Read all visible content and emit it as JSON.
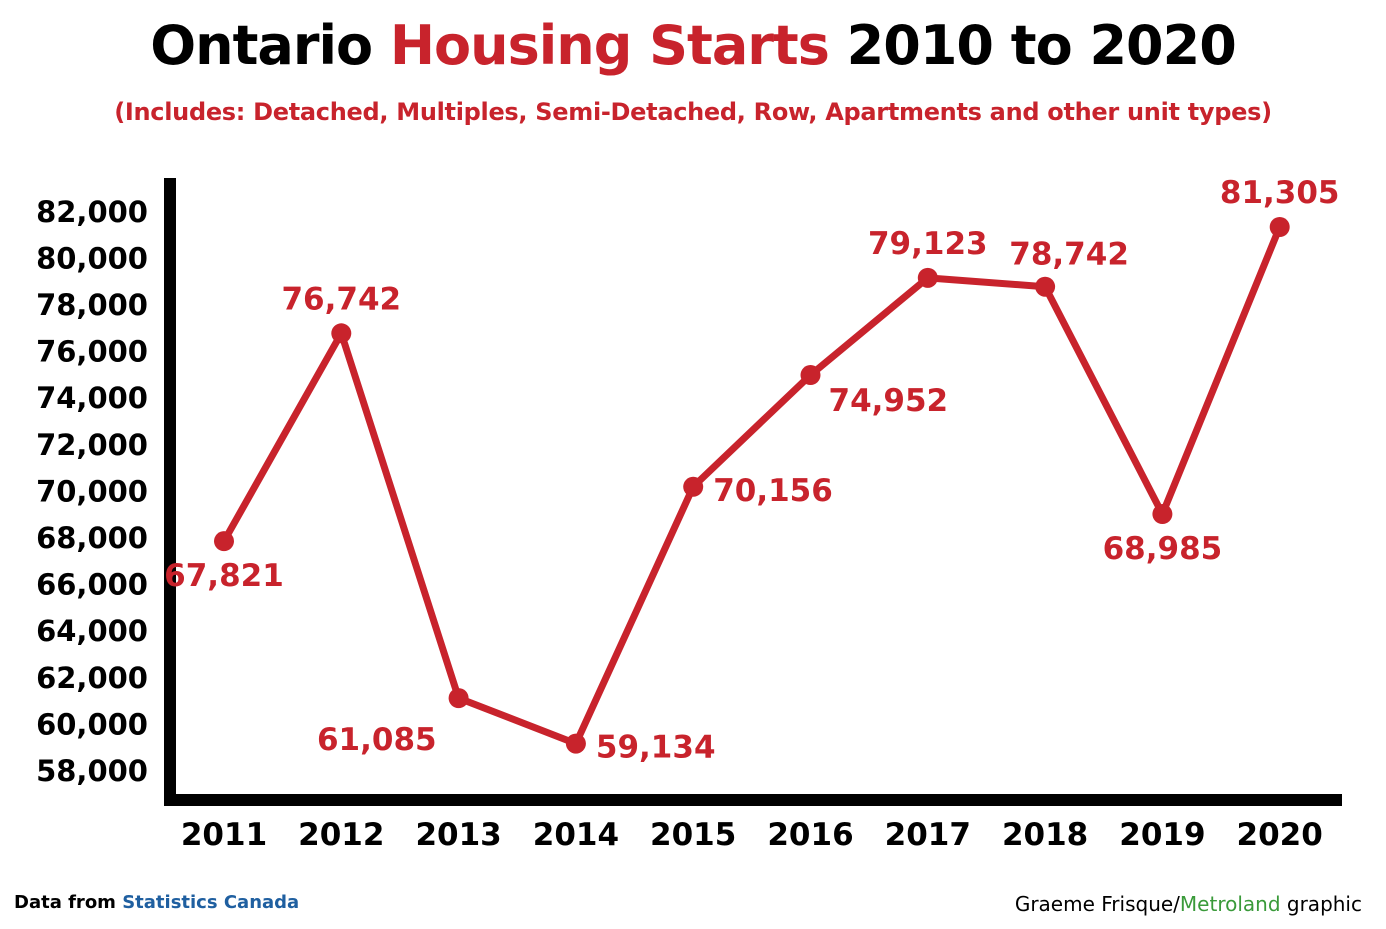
{
  "title": {
    "part1": "Ontario ",
    "highlight": "Housing Starts",
    "part2": " 2010 to 2020"
  },
  "subtitle": "(Includes: Detached, Multiples, Semi-Detached, Row, Apartments and other unit types)",
  "footer": {
    "source_prefix": "Data from ",
    "source_name": "Statistics Canada",
    "credit_name": "Graeme Frisque/",
    "credit_org": "Metroland",
    "credit_suffix": " graphic"
  },
  "colors": {
    "series": "#c8232c",
    "axis": "#000000",
    "source_link": "#1f5fa0",
    "credit_org": "#3a9a3a"
  },
  "chart_data": {
    "type": "line",
    "title": "Ontario Housing Starts 2010 to 2020",
    "subtitle": "(Includes: Detached, Multiples, Semi-Detached, Row, Apartments and other unit types)",
    "xlabel": "",
    "ylabel": "",
    "categories": [
      "2011",
      "2012",
      "2013",
      "2014",
      "2015",
      "2016",
      "2017",
      "2018",
      "2019",
      "2020"
    ],
    "values": [
      67821,
      76742,
      61085,
      59134,
      70156,
      74952,
      79123,
      78742,
      68985,
      81305
    ],
    "data_labels": [
      "67,821",
      "76,742",
      "61,085",
      "59,134",
      "70,156",
      "74,952",
      "79,123",
      "78,742",
      "68,985",
      "81,305"
    ],
    "label_positions": [
      "below",
      "above",
      "below-left",
      "right",
      "right",
      "below-right",
      "above",
      "above-right",
      "below",
      "above"
    ],
    "yticks": [
      58000,
      60000,
      62000,
      64000,
      66000,
      68000,
      70000,
      72000,
      74000,
      76000,
      78000,
      80000,
      82000
    ],
    "ytick_labels": [
      "58,000",
      "60,000",
      "62,000",
      "64,000",
      "66,000",
      "68,000",
      "70,000",
      "72,000",
      "74,000",
      "76,000",
      "78,000",
      "80,000",
      "82,000"
    ],
    "ylim": [
      58000,
      82000
    ],
    "grid": false,
    "legend": "none"
  }
}
